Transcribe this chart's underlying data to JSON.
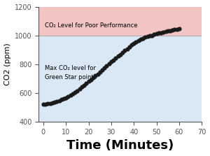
{
  "xlabel": "Time (Minutes)",
  "ylabel": "CO2 (ppm)",
  "xlim": [
    -2,
    70
  ],
  "ylim": [
    400,
    1200
  ],
  "xticks": [
    0,
    10,
    20,
    30,
    40,
    50,
    60,
    70
  ],
  "yticks": [
    400,
    600,
    800,
    1000,
    1200
  ],
  "poor_performance_level": 1000,
  "green_star_level": 800,
  "poor_color": "#f2c4c4",
  "green_color": "#dae8f5",
  "annotation_poor": "CO₂ Level for Poor Performance",
  "annotation_green": "Max CO₂ level for\nGreen Star points",
  "data_x": [
    0,
    1,
    2,
    3,
    4,
    5,
    6,
    7,
    8,
    9,
    10,
    11,
    12,
    13,
    14,
    15,
    16,
    17,
    18,
    19,
    20,
    21,
    22,
    23,
    24,
    25,
    26,
    27,
    28,
    29,
    30,
    31,
    32,
    33,
    34,
    35,
    36,
    37,
    38,
    39,
    40,
    41,
    42,
    43,
    44,
    45,
    46,
    47,
    48,
    49,
    50,
    51,
    52,
    53,
    54,
    55,
    56,
    57,
    58,
    59,
    60
  ],
  "data_y": [
    520,
    523,
    526,
    529,
    532,
    536,
    542,
    548,
    554,
    561,
    568,
    576,
    585,
    595,
    606,
    617,
    629,
    642,
    655,
    668,
    681,
    694,
    707,
    720,
    733,
    747,
    762,
    775,
    789,
    803,
    817,
    830,
    843,
    856,
    869,
    882,
    895,
    908,
    921,
    934,
    947,
    957,
    966,
    974,
    981,
    987,
    992,
    997,
    1001,
    1006,
    1011,
    1016,
    1020,
    1024,
    1028,
    1032,
    1035,
    1038,
    1041,
    1044,
    1047
  ],
  "dot_color": "#1a1a1a",
  "dot_size": 12,
  "xlabel_fontsize": 13,
  "ylabel_fontsize": 8,
  "tick_fontsize": 7,
  "annot_poor_fontsize": 6,
  "annot_green_fontsize": 6
}
